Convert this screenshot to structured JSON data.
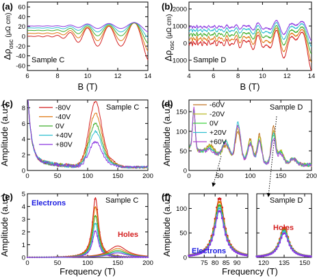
{
  "series_colors": [
    "#d42020",
    "#e07810",
    "#3fae2a",
    "#2fbfd0",
    "#8a36e0"
  ],
  "series_colors_d": [
    "#c07020",
    "#b8b820",
    "#3fd03f",
    "#2fbfd0",
    "#b040d0"
  ],
  "panels": [
    {
      "id": "a",
      "label": "(a)",
      "sample": "Sample C",
      "ylabel": "Δρ_osc (μΩ cm)",
      "xlabel": "",
      "xticks": [
        "6",
        "8",
        "10",
        "12",
        "14"
      ],
      "yticks": [
        "-60",
        "-40",
        "-20",
        "0",
        "20",
        "40",
        "60"
      ]
    },
    {
      "id": "b",
      "label": "(b)",
      "sample": "Sample D",
      "ylabel": "Δρ_osc (μΩ cm)",
      "xlabel": "",
      "xticks": [
        "4",
        "6",
        "8",
        "10",
        "12",
        "14"
      ],
      "yticks": [
        "-1000",
        "0",
        "1000",
        "2000"
      ]
    },
    {
      "id": "c",
      "label": "(c)",
      "sample": "Sample C",
      "ylabel": "Amplitude (a.u.)",
      "xlabel": "",
      "xticks": [
        "0",
        "50",
        "100",
        "150",
        "200"
      ],
      "yticks": [
        "0",
        "2",
        "4",
        "6",
        "8"
      ],
      "legend": [
        "-80V",
        "-40V",
        "0V",
        "+40V",
        "+80V"
      ]
    },
    {
      "id": "d",
      "label": "(d)",
      "sample": "Sample D",
      "ylabel": "",
      "xlabel": "",
      "xticks": [
        "0",
        "50",
        "100",
        "150",
        "200"
      ],
      "yticks": [
        "0",
        "50",
        "100",
        "150"
      ],
      "legend": [
        "-60V",
        "-20V",
        "0V",
        "+20V",
        "+60V"
      ]
    },
    {
      "id": "e",
      "label": "(e)",
      "sample": "Sample C",
      "ylabel": "Amplitude (a.u.)",
      "xlabel": "Frequency (T)",
      "xticks": [
        "0",
        "50",
        "100",
        "150",
        "200"
      ],
      "yticks": [
        "0",
        "1",
        "2",
        "3",
        "4",
        "5"
      ],
      "annotations": [
        "Electrons",
        "Holes"
      ]
    },
    {
      "id": "f",
      "label": "(f)",
      "sample": "Sample D",
      "ylabel": "Amplitude (a.u.)",
      "xlabel": "Frequency (T)",
      "xticks_left": [
        "75",
        "80",
        "85",
        "90"
      ],
      "xticks_right": [
        "120",
        "135",
        "150"
      ],
      "yticks": [
        "0",
        "50",
        "100"
      ],
      "annotations": [
        "Electrons",
        "Holes"
      ]
    }
  ],
  "bottom_xlabel_top": "B (T)",
  "chart_data": [
    {
      "panel": "a",
      "type": "line",
      "xlabel": "B (T)",
      "ylabel": "Δρ_osc (μΩ cm)",
      "xlim": [
        6,
        14
      ],
      "ylim": [
        -70,
        70
      ],
      "note": "Quantum oscillations vs magnetic field, growing amplitude with B, five gate voltages",
      "series": [
        {
          "values": []
        }
      ]
    },
    {
      "panel": "b",
      "type": "line",
      "xlabel": "B (T)",
      "ylabel": "Δρ_osc (μΩ cm)",
      "xlim": [
        4,
        14
      ],
      "ylim": [
        -1600,
        2400
      ],
      "series": [
        {
          "values": []
        }
      ]
    },
    {
      "panel": "c",
      "type": "line",
      "xlabel": "",
      "ylabel": "Amplitude (a.u.)",
      "xlim": [
        0,
        200
      ],
      "ylim": [
        0,
        9
      ],
      "series": [
        {
          "name": "-80V",
          "peak_x": 113,
          "peak_y": 8.3
        },
        {
          "name": "-40V",
          "peak_x": 113,
          "peak_y": 6.8
        },
        {
          "name": "0V",
          "peak_x": 113,
          "peak_y": 5.5
        },
        {
          "name": "+40V",
          "peak_x": 113,
          "peak_y": 4.5
        },
        {
          "name": "+80V",
          "peak_x": 113,
          "peak_y": 3.2
        }
      ]
    },
    {
      "panel": "d",
      "type": "line",
      "xlabel": "",
      "ylabel": "Amplitude (a.u.)",
      "xlim": [
        0,
        200
      ],
      "ylim": [
        0,
        180
      ],
      "series": [
        {
          "name": "-60V"
        },
        {
          "name": "-20V"
        },
        {
          "name": "0V"
        },
        {
          "name": "+20V"
        },
        {
          "name": "+60V"
        }
      ]
    },
    {
      "panel": "e",
      "type": "line",
      "xlabel": "Frequency (T)",
      "ylabel": "Amplitude (a.u.)",
      "xlim": [
        0,
        200
      ],
      "ylim": [
        0,
        5
      ],
      "electron_peaks": [
        {
          "x": 113,
          "y": 4.7
        },
        {
          "x": 113,
          "y": 4.0
        },
        {
          "x": 113,
          "y": 3.3
        },
        {
          "x": 113,
          "y": 2.7
        },
        {
          "x": 113,
          "y": 2.1
        }
      ],
      "hole_peaks": [
        {
          "x": 150,
          "y": 0.9
        },
        {
          "x": 150,
          "y": 0.7
        },
        {
          "x": 150,
          "y": 0.55
        },
        {
          "x": 150,
          "y": 0.45
        },
        {
          "x": 150,
          "y": 0.35
        }
      ]
    },
    {
      "panel": "f",
      "type": "line",
      "xlabel": "Frequency (T)",
      "ylabel": "Amplitude (a.u.)",
      "left": {
        "xlim": [
          68,
          95
        ],
        "ylim": [
          0,
          130
        ],
        "electron_peaks": [
          {
            "x": 82,
            "y": 122
          },
          {
            "x": 82,
            "y": 115
          },
          {
            "x": 82,
            "y": 108
          },
          {
            "x": 82,
            "y": 102
          },
          {
            "x": 82,
            "y": 96
          }
        ]
      },
      "right": {
        "xlim": [
          115,
          155
        ],
        "ylim": [
          0,
          130
        ],
        "hole_peaks": [
          {
            "x": 135,
            "y": 62
          },
          {
            "x": 135,
            "y": 60
          },
          {
            "x": 135,
            "y": 57
          },
          {
            "x": 135,
            "y": 54
          },
          {
            "x": 135,
            "y": 50
          }
        ]
      }
    }
  ]
}
